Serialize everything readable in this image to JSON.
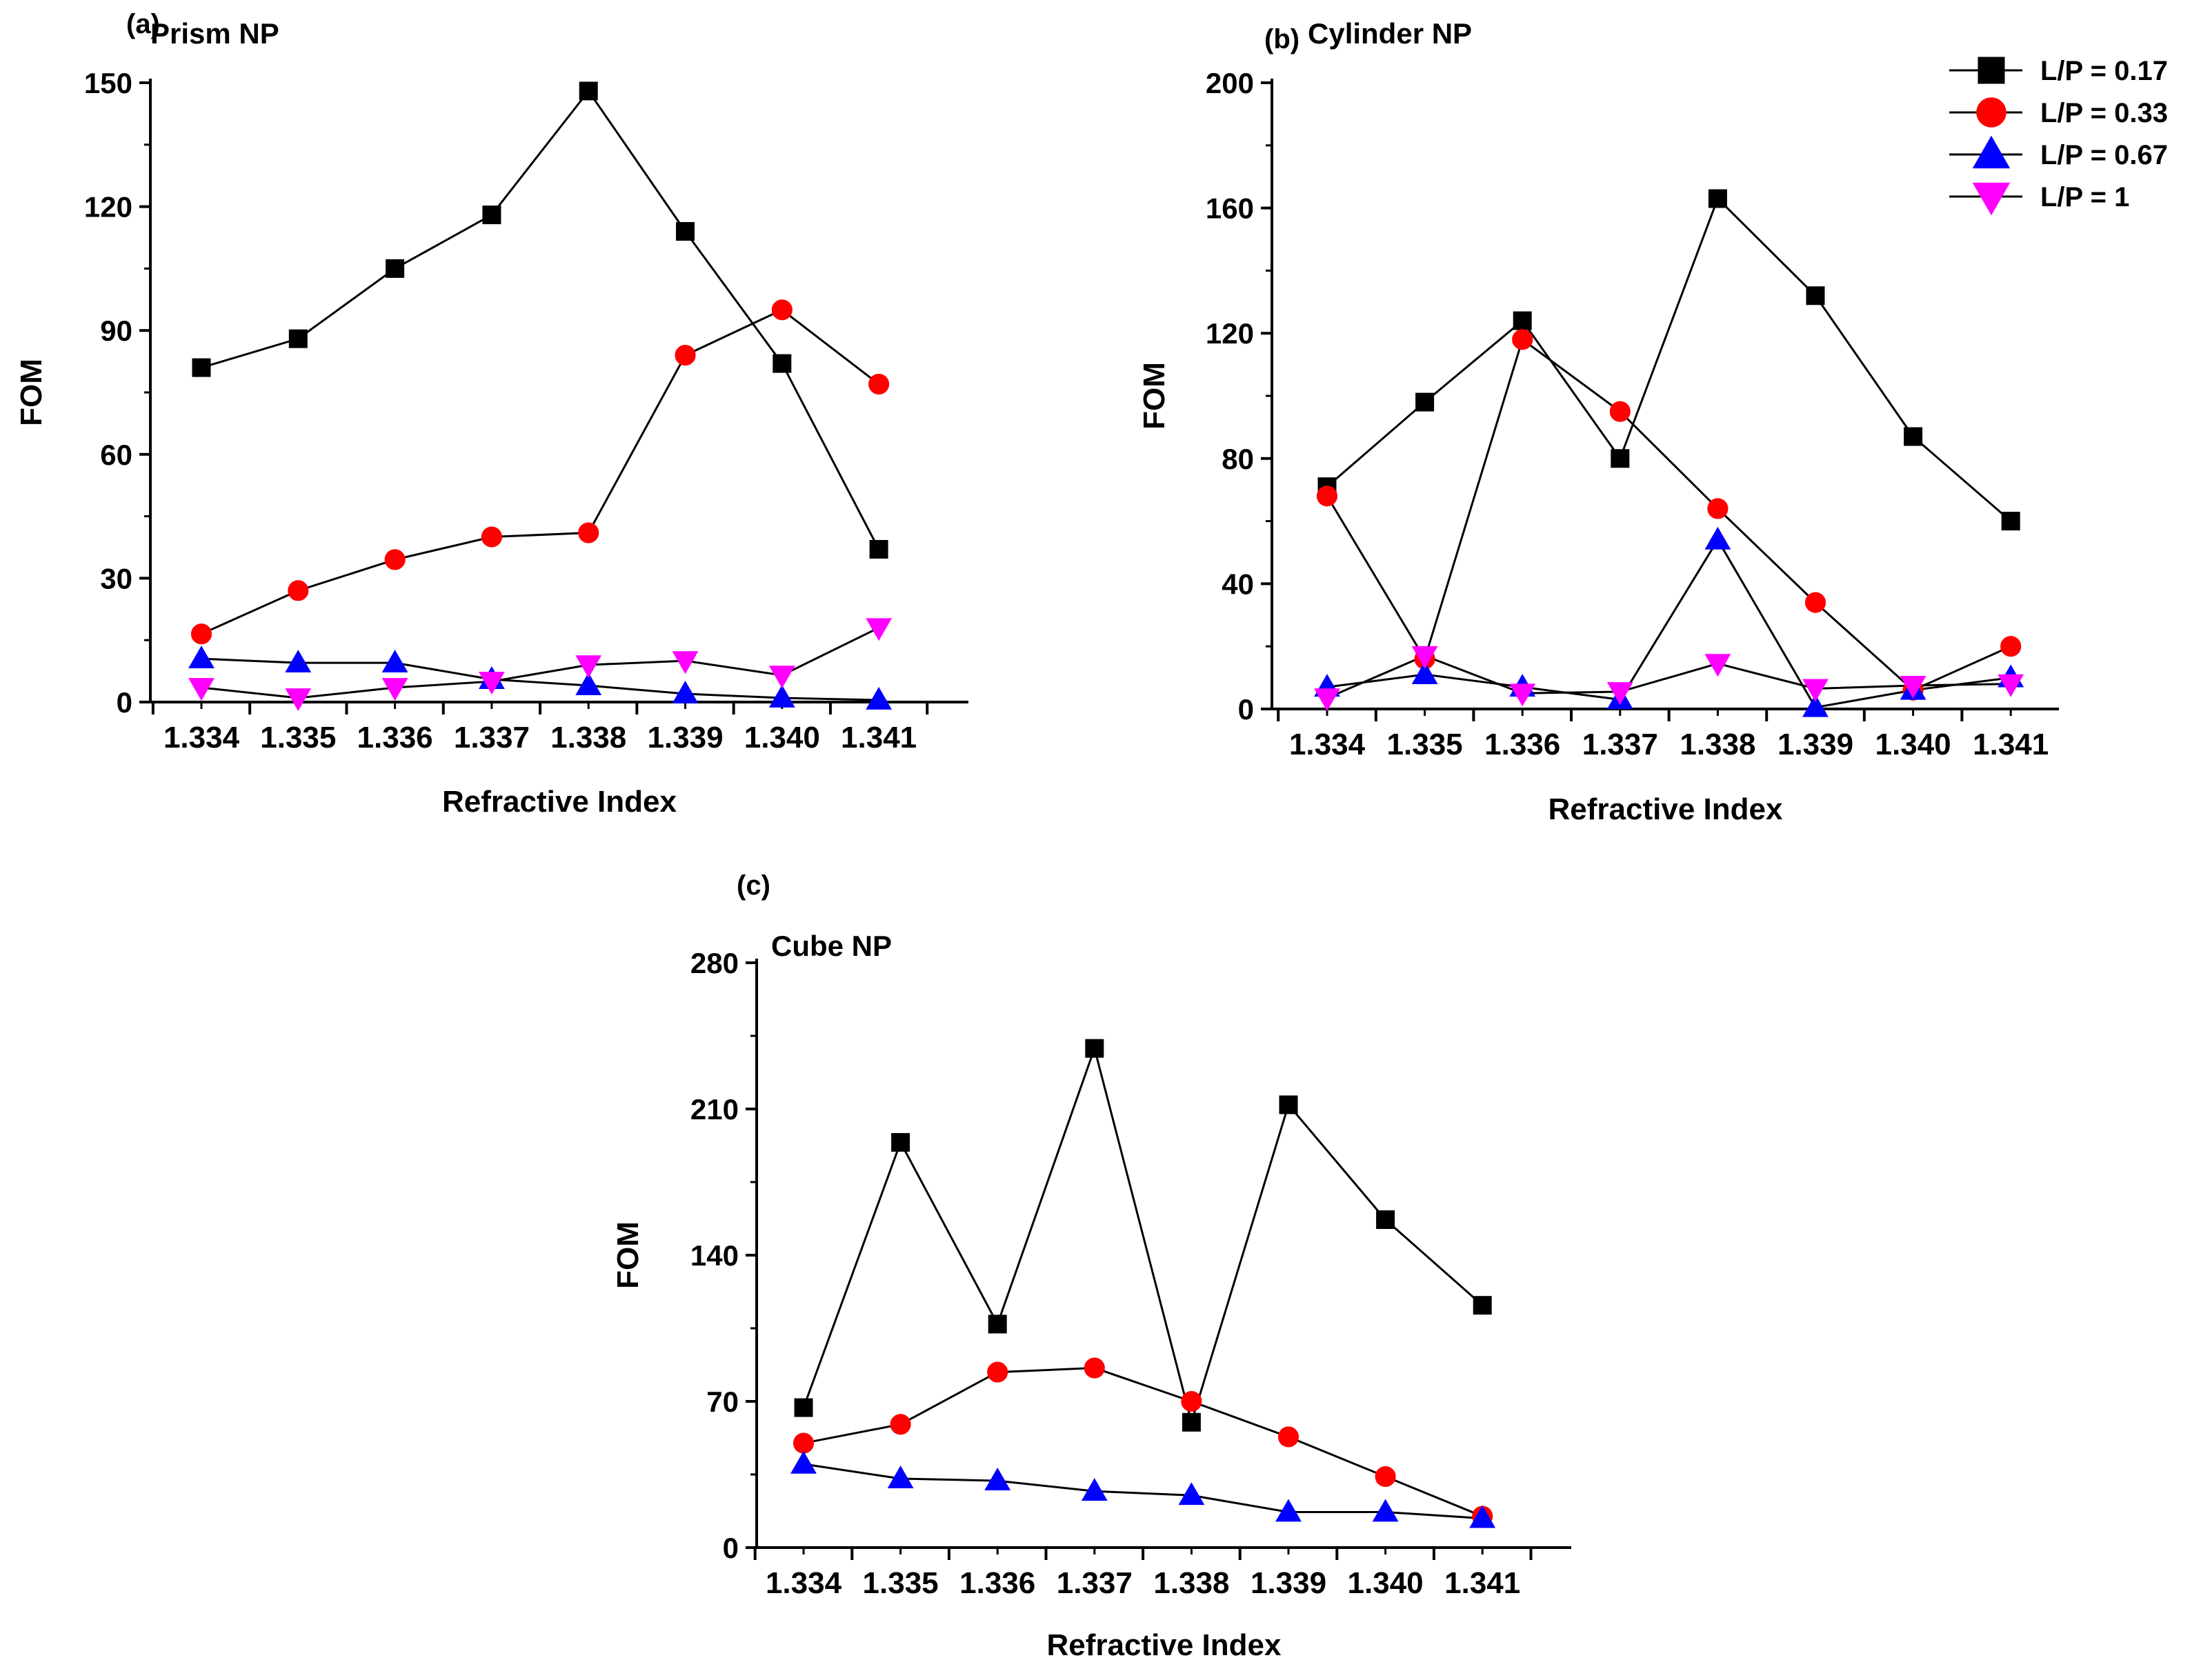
{
  "figure": {
    "panels": [
      {
        "letter": "(a)",
        "title": "Prism NP",
        "chart_data": {
          "type": "line",
          "title": "Prism NP",
          "xlabel": "Refractive Index",
          "ylabel": "FOM",
          "x_ticks": [
            "1.334",
            "1.335",
            "1.336",
            "1.337",
            "1.338",
            "1.339",
            "1.340",
            "1.341"
          ],
          "y_ticks": [
            "0",
            "30",
            "60",
            "90",
            "120",
            "150"
          ],
          "xlim": [
            1.3335,
            1.3418
          ],
          "ylim": [
            0,
            150
          ],
          "series": [
            {
              "name": "L/P =  0.17",
              "color": "#000000",
              "marker": "square",
              "values": [
                81,
                88,
                105,
                118,
                148,
                114,
                82,
                37
              ]
            },
            {
              "name": "L/P = 0.33",
              "color": "#ff0000",
              "marker": "circle",
              "values": [
                16.5,
                27,
                34.5,
                40,
                41,
                84,
                95,
                77
              ]
            },
            {
              "name": "L/P = 0.67",
              "color": "#0000ff",
              "marker": "triangle-up",
              "values": [
                10.5,
                9.5,
                9.5,
                5.5,
                4,
                2,
                1,
                0.5
              ]
            },
            {
              "name": "L/P = 1",
              "color": "#ff00ff",
              "marker": "triangle-down",
              "values": [
                3.5,
                1,
                3.5,
                5,
                9,
                10,
                6.5,
                18
              ]
            }
          ]
        }
      },
      {
        "letter": "(b)",
        "title": "Cylinder NP",
        "chart_data": {
          "type": "line",
          "title": "Cylinder NP",
          "xlabel": "Refractive Index",
          "ylabel": "FOM",
          "x_ticks": [
            "1.334",
            "1.335",
            "1.336",
            "1.337",
            "1.338",
            "1.339",
            "1.340",
            "1.341"
          ],
          "y_ticks": [
            "0",
            "40",
            "80",
            "120",
            "160",
            "200"
          ],
          "xlim": [
            1.3335,
            1.3418
          ],
          "ylim": [
            0,
            200
          ],
          "series": [
            {
              "name": "L/P =  0.17",
              "color": "#000000",
              "marker": "square",
              "values": [
                71,
                98,
                124,
                80,
                163,
                132,
                87,
                60
              ]
            },
            {
              "name": "L/P = 0.33",
              "color": "#ff0000",
              "marker": "circle",
              "values": [
                68,
                16,
                118,
                95,
                64,
                34,
                6,
                20
              ]
            },
            {
              "name": "L/P = 0.67",
              "color": "#0000ff",
              "marker": "triangle-up",
              "values": [
                7,
                11,
                7,
                3,
                54,
                0.5,
                6,
                10
              ]
            },
            {
              "name": "L/P = 1",
              "color": "#ff00ff",
              "marker": "triangle-down",
              "values": [
                3.5,
                17,
                5,
                5.5,
                14.5,
                6.5,
                7.5,
                8
              ]
            }
          ]
        }
      },
      {
        "letter": "(c)",
        "title": "Cube NP",
        "chart_data": {
          "type": "line",
          "title": "Cube NP",
          "xlabel": "Refractive Index",
          "ylabel": "FOM",
          "x_ticks": [
            "1.334",
            "1.335",
            "1.336",
            "1.337",
            "1.338",
            "1.339",
            "1.340",
            "1.341"
          ],
          "y_ticks": [
            "0",
            "70",
            "140",
            "210",
            "280"
          ],
          "xlim": [
            1.3335,
            1.3418
          ],
          "ylim": [
            0,
            280
          ],
          "series": [
            {
              "name": "L/P =  0.17",
              "color": "#000000",
              "marker": "square",
              "values": [
                67,
                194,
                107,
                239,
                60,
                212,
                157,
                116
              ]
            },
            {
              "name": "L/P = 0.33",
              "color": "#ff0000",
              "marker": "circle",
              "values": [
                50,
                59,
                84,
                86,
                70,
                53,
                34,
                15
              ]
            },
            {
              "name": "L/P = 0.67",
              "color": "#0000ff",
              "marker": "triangle-up",
              "values": [
                40,
                33,
                32,
                27,
                25,
                17,
                17,
                14
              ]
            }
          ]
        }
      }
    ],
    "legend": [
      {
        "label": "L/P =  0.17",
        "color": "#000000",
        "marker": "square"
      },
      {
        "label": "L/P = 0.33",
        "color": "#ff0000",
        "marker": "circle"
      },
      {
        "label": "L/P = 0.67",
        "color": "#0000ff",
        "marker": "triangle-up"
      },
      {
        "label": "L/P = 1",
        "color": "#ff00ff",
        "marker": "triangle-down"
      }
    ]
  }
}
